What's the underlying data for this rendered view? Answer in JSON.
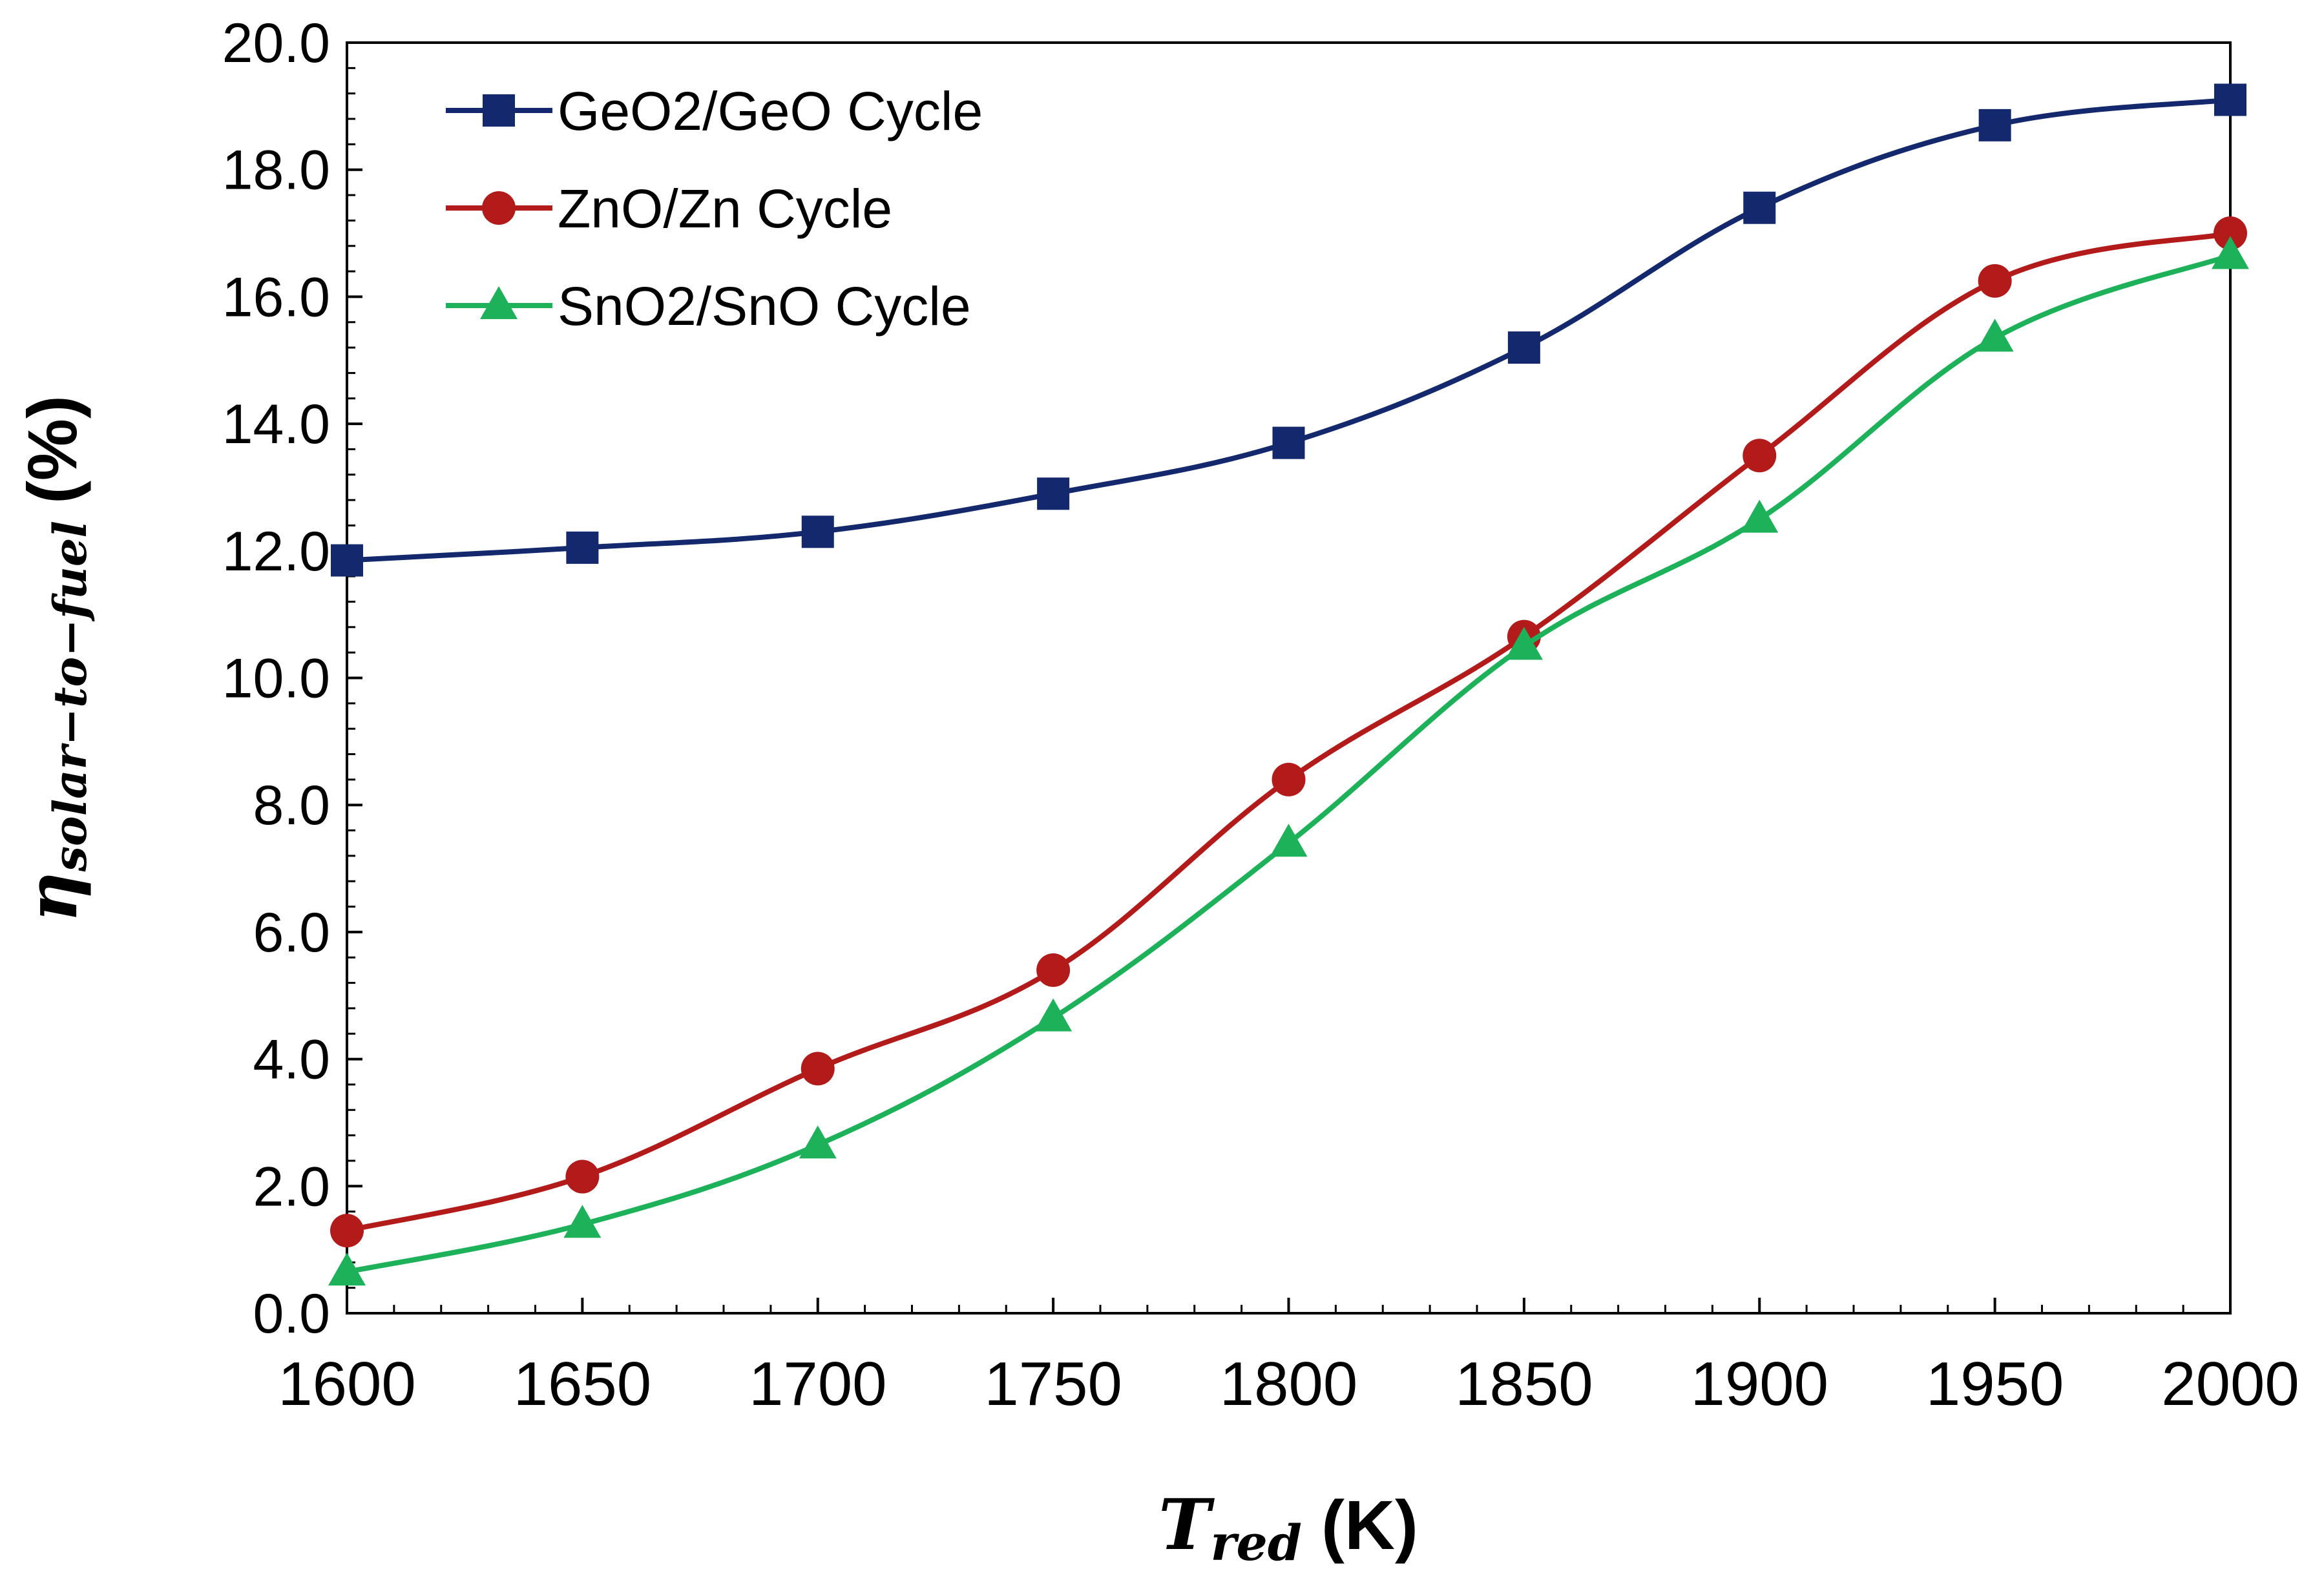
{
  "chart_data": {
    "type": "line",
    "title": "",
    "x": [
      1600,
      1650,
      1700,
      1750,
      1800,
      1850,
      1900,
      1950,
      2000
    ],
    "xlim": [
      1600,
      2000
    ],
    "x_ticks": [
      1600,
      1650,
      1700,
      1750,
      1800,
      1850,
      1900,
      1950,
      2000
    ],
    "x_tick_labels": [
      "1600",
      "1650",
      "1700",
      "1750",
      "1800",
      "1850",
      "1900",
      "1950",
      "2000"
    ],
    "ylim": [
      0,
      20
    ],
    "y_ticks": [
      0,
      2,
      4,
      6,
      8,
      10,
      12,
      14,
      16,
      18,
      20
    ],
    "y_tick_labels": [
      "0.0",
      "2.0",
      "4.0",
      "6.0",
      "8.0",
      "10.0",
      "12.0",
      "14.0",
      "16.0",
      "18.0",
      "20.0"
    ],
    "xlabel": {
      "symbol": "T",
      "subscript": "red",
      "unit": "(K)"
    },
    "ylabel": {
      "symbol": "η",
      "subscript": "solar−to−fuel",
      "unit": "(%)"
    },
    "grid": false,
    "legend_position": "top-left",
    "series": [
      {
        "name": "GeO2/GeO Cycle",
        "color": "#14286e",
        "marker": "square",
        "values": [
          11.85,
          12.05,
          12.3,
          12.9,
          13.7,
          15.2,
          17.4,
          18.7,
          19.1
        ]
      },
      {
        "name": "ZnO/Zn Cycle",
        "color": "#b31b1b",
        "marker": "circle",
        "values": [
          1.3,
          2.15,
          3.85,
          5.4,
          8.4,
          10.65,
          13.5,
          16.25,
          17.0
        ]
      },
      {
        "name": "SnO2/SnO Cycle",
        "color": "#1db15a",
        "marker": "triangle",
        "values": [
          0.65,
          1.4,
          2.65,
          4.65,
          7.4,
          10.5,
          12.5,
          15.35,
          16.65
        ]
      }
    ]
  }
}
